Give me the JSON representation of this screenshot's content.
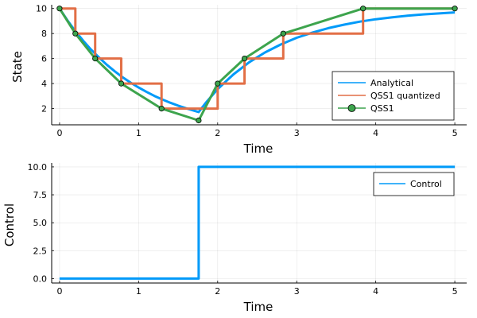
{
  "chart_data": [
    {
      "type": "line",
      "xlabel": "Time",
      "ylabel": "State",
      "xlim": [
        -0.1,
        5.15
      ],
      "ylim": [
        0.7,
        10.3
      ],
      "xticks": [
        0,
        1,
        2,
        3,
        4,
        5
      ],
      "xtick_labels": [
        "0",
        "1",
        "2",
        "3",
        "4",
        "5"
      ],
      "yticks": [
        2,
        4,
        6,
        8,
        10
      ],
      "ytick_labels": [
        "2",
        "4",
        "6",
        "8",
        "10"
      ],
      "legend_position": "bottom-right",
      "series": [
        {
          "name": "Analytical",
          "kind": "line",
          "color": "#009af9",
          "x": [
            0,
            0.1,
            0.2,
            0.3,
            0.4,
            0.5,
            0.6,
            0.7,
            0.8,
            0.9,
            1.0,
            1.1,
            1.2,
            1.3,
            1.4,
            1.5,
            1.6,
            1.7,
            1.76,
            1.85,
            2.0,
            2.2,
            2.4,
            2.6,
            2.8,
            3.0,
            3.2,
            3.4,
            3.6,
            3.8,
            4.0,
            4.2,
            4.4,
            4.6,
            4.8,
            5.0
          ],
          "y": [
            10.0,
            9.05,
            8.19,
            7.41,
            6.7,
            6.07,
            5.49,
            4.97,
            4.49,
            4.07,
            3.68,
            3.33,
            3.01,
            2.73,
            2.47,
            2.23,
            2.02,
            1.83,
            1.72,
            2.46,
            3.56,
            4.74,
            5.71,
            6.49,
            7.13,
            7.66,
            8.08,
            8.43,
            8.71,
            8.95,
            9.14,
            9.29,
            9.42,
            9.53,
            9.61,
            9.69
          ]
        },
        {
          "name": "QSS1 quantized",
          "kind": "step",
          "color": "#e26f46",
          "x": [
            0,
            0.2,
            0.45,
            0.78,
            1.29,
            1.76,
            2.0,
            2.34,
            2.83,
            3.84,
            5.0
          ],
          "y": [
            10,
            8,
            6,
            4,
            2,
            2,
            4,
            6,
            8,
            10,
            10
          ]
        },
        {
          "name": "QSS1",
          "kind": "line+markers",
          "color": "#3da44d",
          "x": [
            0,
            0.2,
            0.45,
            0.78,
            1.29,
            1.76,
            2.0,
            2.34,
            2.83,
            3.84,
            5.0
          ],
          "y": [
            10,
            8,
            6,
            4,
            2,
            1.05,
            4,
            6,
            8,
            10,
            10
          ]
        }
      ]
    },
    {
      "type": "line",
      "xlabel": "Time",
      "ylabel": "Control",
      "xlim": [
        -0.1,
        5.15
      ],
      "ylim": [
        -0.4,
        10.35
      ],
      "xticks": [
        0,
        1,
        2,
        3,
        4,
        5
      ],
      "xtick_labels": [
        "0",
        "1",
        "2",
        "3",
        "4",
        "5"
      ],
      "yticks": [
        0,
        2.5,
        5,
        7.5,
        10
      ],
      "ytick_labels": [
        "0.0",
        "2.5",
        "5.0",
        "7.5",
        "10.0"
      ],
      "legend_position": "top-right",
      "series": [
        {
          "name": "Control",
          "kind": "step",
          "color": "#009af9",
          "x": [
            0,
            1.76,
            5.0
          ],
          "y": [
            0,
            10,
            10
          ]
        }
      ]
    }
  ]
}
